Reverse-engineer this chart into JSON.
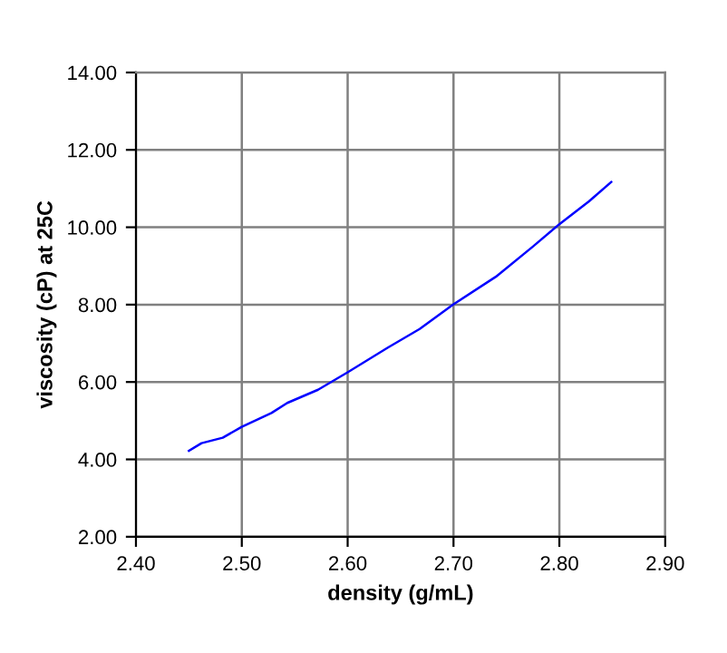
{
  "chart_data": {
    "type": "line",
    "xlabel": "density (g/mL)",
    "ylabel": "viscosity (cP) at 25C",
    "x": [
      2.45,
      2.462,
      2.482,
      2.5,
      2.528,
      2.543,
      2.572,
      2.6,
      2.638,
      2.668,
      2.7,
      2.74,
      2.775,
      2.8,
      2.828,
      2.849
    ],
    "series": [
      {
        "color": "#0000ff",
        "values": [
          4.22,
          4.42,
          4.56,
          4.84,
          5.2,
          5.46,
          5.8,
          6.25,
          6.89,
          7.37,
          8.01,
          8.72,
          9.5,
          10.08,
          10.67,
          11.17
        ]
      }
    ],
    "xlim": [
      2.4,
      2.9
    ],
    "ylim": [
      2,
      14
    ],
    "xticks": [
      {
        "value": 2.4,
        "label": "2.40"
      },
      {
        "value": 2.5,
        "label": "2.50"
      },
      {
        "value": 2.6,
        "label": "2.60"
      },
      {
        "value": 2.7,
        "label": "2.70"
      },
      {
        "value": 2.8,
        "label": "2.80"
      },
      {
        "value": 2.9,
        "label": "2.90"
      }
    ],
    "yticks": [
      {
        "value": 2,
        "label": "2.00"
      },
      {
        "value": 4,
        "label": "4.00"
      },
      {
        "value": 6,
        "label": "6.00"
      },
      {
        "value": 8,
        "label": "8.00"
      },
      {
        "value": 10,
        "label": "10.00"
      },
      {
        "value": 12,
        "label": "12.00"
      },
      {
        "value": 14,
        "label": "14.00"
      }
    ],
    "grid": true,
    "marker": "none",
    "line_style": "solid"
  }
}
